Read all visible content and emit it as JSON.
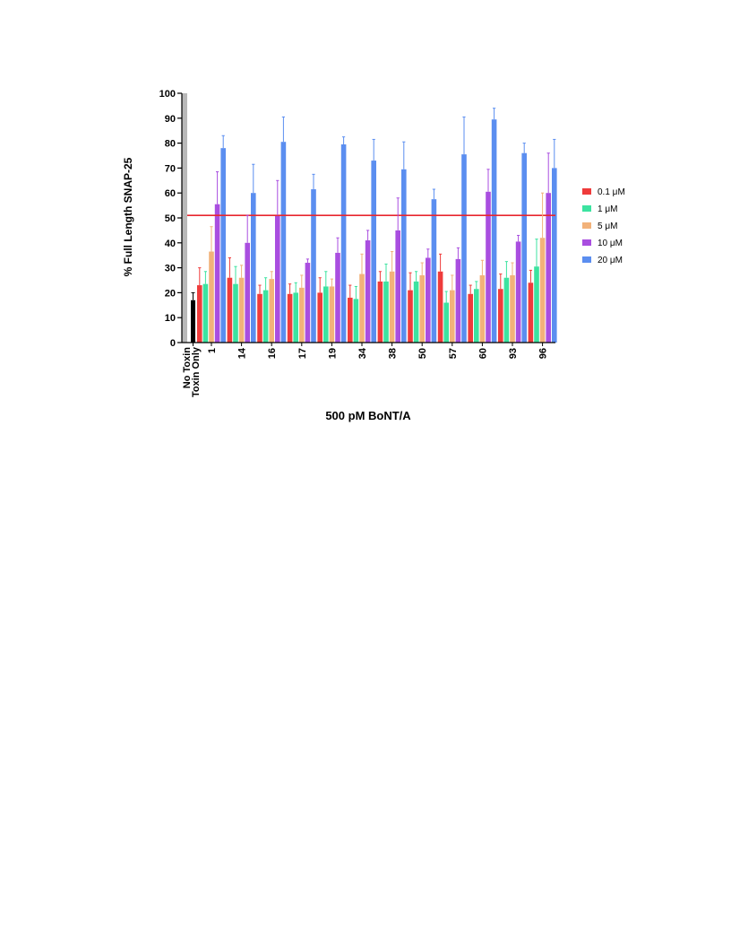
{
  "chart_data": {
    "type": "bar",
    "ylabel": "% Full Length SNAP-25",
    "xlabel": "500 pM BoNT/A",
    "ylim": [
      0,
      100
    ],
    "yticks": [
      0,
      10,
      20,
      30,
      40,
      50,
      60,
      70,
      80,
      90,
      100
    ],
    "reference_line": 51,
    "reference_line_color": "#e8262e",
    "control": {
      "label_lines": [
        "No Toxin",
        "Toxin Only"
      ],
      "value": 17,
      "error": 3,
      "color": "#000000"
    },
    "categories": [
      "1",
      "14",
      "16",
      "17",
      "19",
      "34",
      "38",
      "50",
      "57",
      "60",
      "93",
      "96"
    ],
    "series": [
      {
        "name": "0.1 μM",
        "color": "#ef3b3b",
        "values": [
          23,
          26,
          19.5,
          19.5,
          20,
          18,
          24.5,
          21,
          28.5,
          19.5,
          21.5,
          24
        ],
        "errors": [
          7,
          8,
          3.5,
          4,
          6,
          5,
          4,
          7,
          7,
          3.5,
          6,
          5
        ]
      },
      {
        "name": "1 μM",
        "color": "#3ce3a0",
        "values": [
          23.5,
          23.5,
          21,
          20,
          22.5,
          17.5,
          24.5,
          24.5,
          16,
          21.5,
          26,
          30.5
        ],
        "errors": [
          5,
          7,
          5,
          4,
          6,
          5,
          7,
          4,
          4.5,
          3,
          6.5,
          11
        ]
      },
      {
        "name": "5 μM",
        "color": "#f2b27a",
        "values": [
          36.5,
          26,
          25.5,
          22,
          22.5,
          27.5,
          28.5,
          27,
          21,
          27,
          27,
          42
        ],
        "errors": [
          10,
          5,
          3,
          5,
          3,
          8,
          8,
          5,
          6,
          6,
          5,
          18
        ]
      },
      {
        "name": "10 μM",
        "color": "#a94ee0",
        "values": [
          55.5,
          40,
          51,
          32,
          36,
          41,
          45,
          34,
          33.5,
          60.5,
          40.5,
          60
        ],
        "errors": [
          13,
          11,
          14,
          1.5,
          6,
          4,
          13,
          3.5,
          4.5,
          9,
          2.5,
          16
        ]
      },
      {
        "name": "20 μM",
        "color": "#5b8ef0",
        "values": [
          78,
          60,
          80.5,
          61.5,
          79.5,
          73,
          69.5,
          57.5,
          75.5,
          89.5,
          76,
          70
        ],
        "errors": [
          5,
          11.5,
          10,
          6,
          3,
          8.5,
          11,
          4,
          15,
          4.5,
          4,
          11.5
        ]
      }
    ],
    "legend_position": "right"
  }
}
